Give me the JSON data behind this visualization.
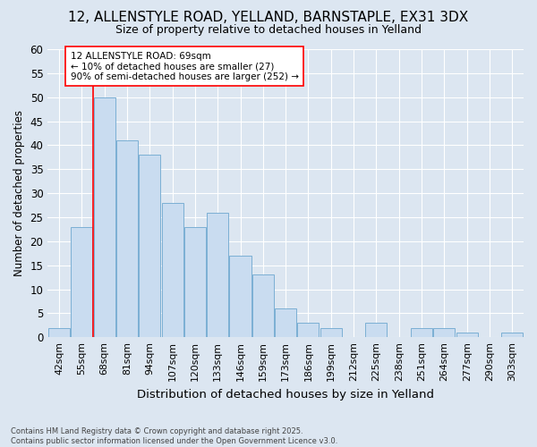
{
  "title1": "12, ALLENSTYLE ROAD, YELLAND, BARNSTAPLE, EX31 3DX",
  "title2": "Size of property relative to detached houses in Yelland",
  "xlabel": "Distribution of detached houses by size in Yelland",
  "ylabel": "Number of detached properties",
  "categories": [
    "42sqm",
    "55sqm",
    "68sqm",
    "81sqm",
    "94sqm",
    "107sqm",
    "120sqm",
    "133sqm",
    "146sqm",
    "159sqm",
    "173sqm",
    "186sqm",
    "199sqm",
    "212sqm",
    "225sqm",
    "238sqm",
    "251sqm",
    "264sqm",
    "277sqm",
    "290sqm",
    "303sqm"
  ],
  "values": [
    2,
    23,
    50,
    41,
    38,
    28,
    23,
    26,
    17,
    13,
    6,
    3,
    2,
    0,
    3,
    0,
    2,
    2,
    1,
    0,
    1
  ],
  "bar_color": "#c9dcf0",
  "bar_edge_color": "#7bafd4",
  "background_color": "#dce6f1",
  "plot_bg_color": "#dce6f1",
  "grid_color": "#ffffff",
  "red_line_x": 2,
  "annotation_title": "12 ALLENSTYLE ROAD: 69sqm",
  "annotation_line1": "← 10% of detached houses are smaller (27)",
  "annotation_line2": "90% of semi-detached houses are larger (252) →",
  "footer": "Contains HM Land Registry data © Crown copyright and database right 2025.\nContains public sector information licensed under the Open Government Licence v3.0.",
  "ylim": [
    0,
    60
  ],
  "yticks": [
    0,
    5,
    10,
    15,
    20,
    25,
    30,
    35,
    40,
    45,
    50,
    55,
    60
  ]
}
